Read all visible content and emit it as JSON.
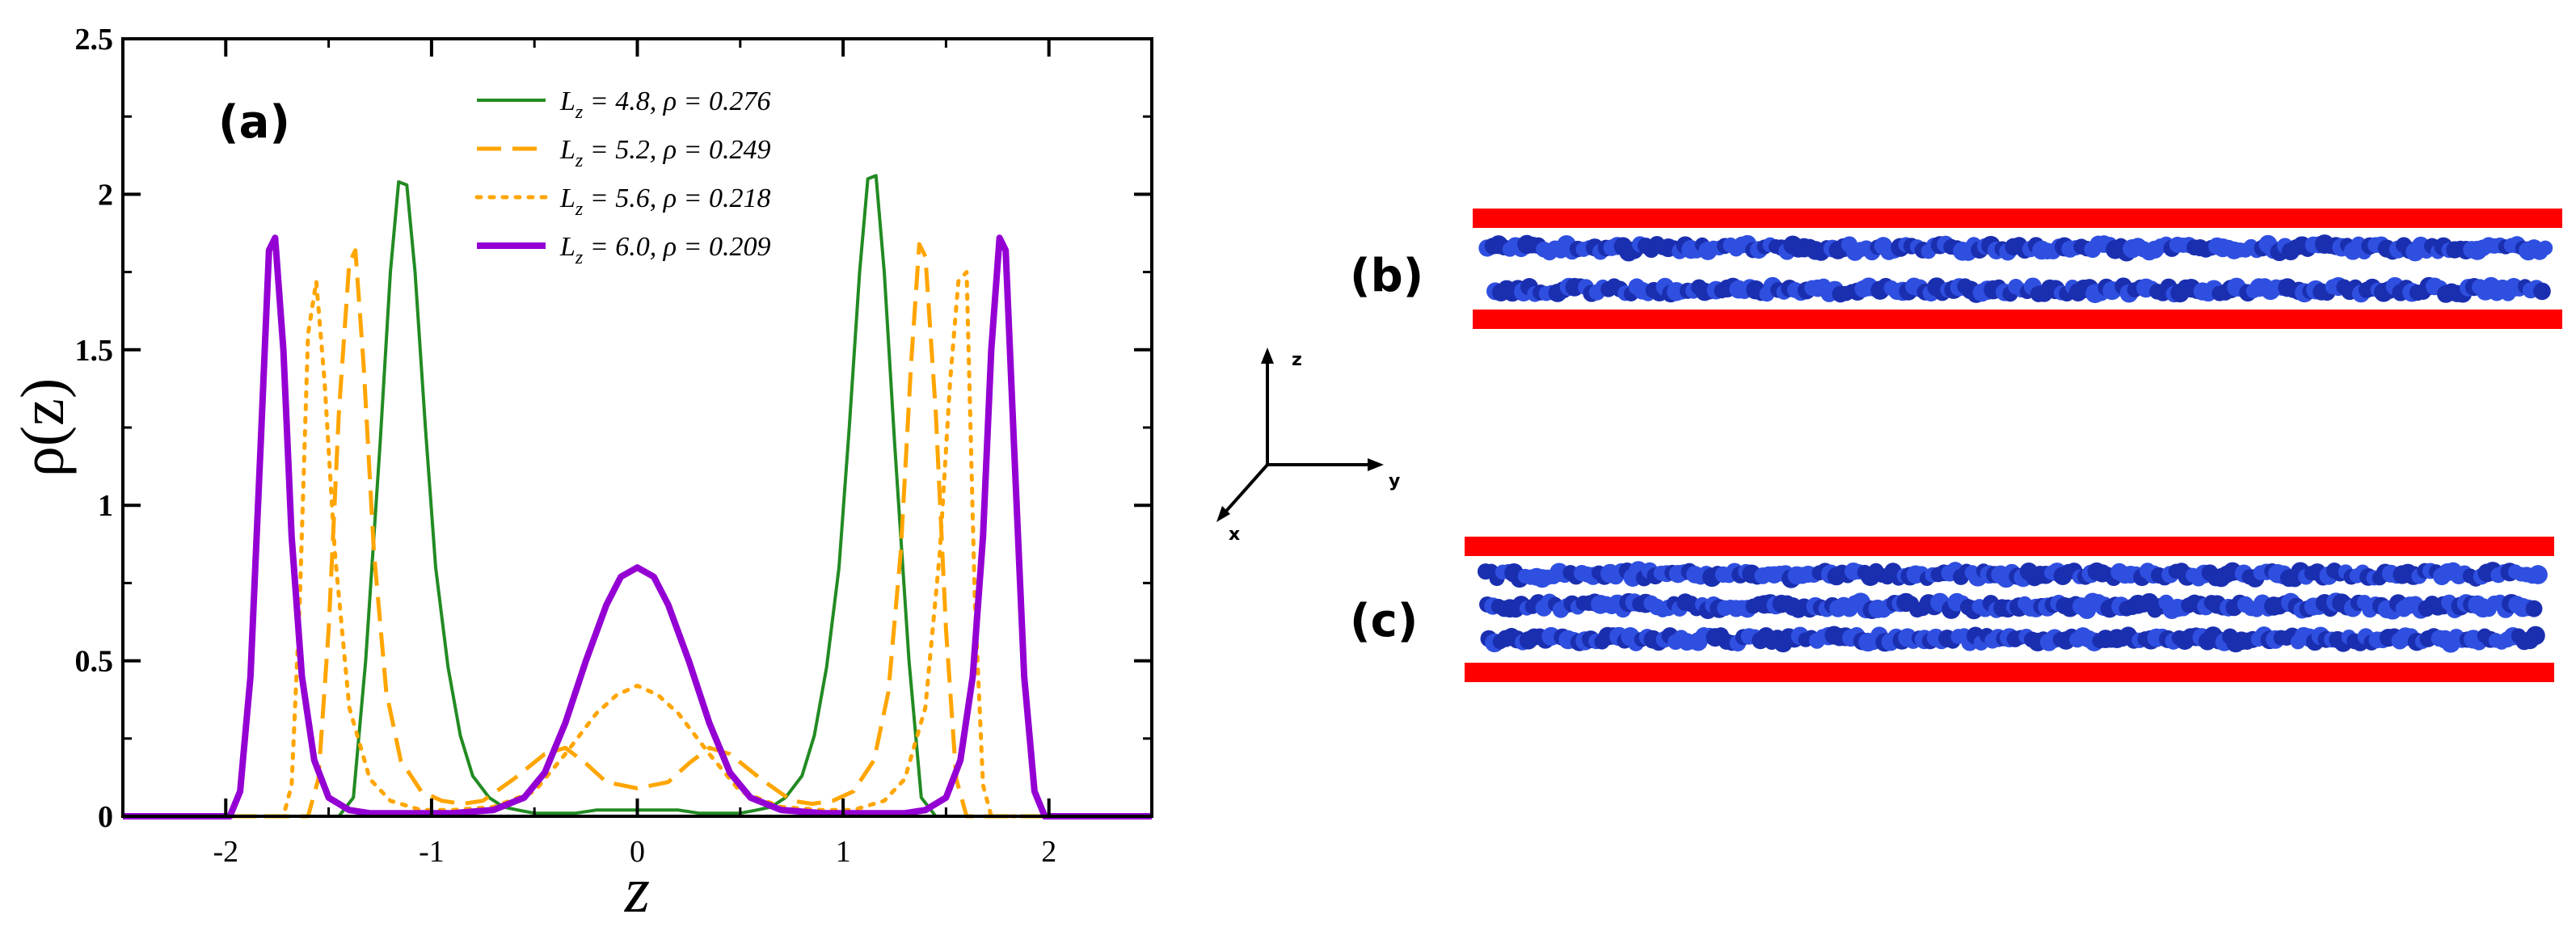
{
  "panels": {
    "a_label": "(a)",
    "b_label": "(b)",
    "c_label": "(c)"
  },
  "axes3d": {
    "z_label": "z",
    "y_label": "y",
    "x_label": "x"
  },
  "colors": {
    "green": "#228B22",
    "orange": "#FFA500",
    "purple": "#9400D3",
    "wall": "#FF0000",
    "bead": "#2f4fe0",
    "bead_dark": "#1a2fb0",
    "axis": "#000000"
  },
  "chart_data": {
    "type": "line",
    "xlabel": "z",
    "ylabel": "ρ(z)",
    "xlim": [
      -2.5,
      2.5
    ],
    "ylim": [
      0,
      2.5
    ],
    "x_ticks": [
      -2,
      -1,
      0,
      1,
      2
    ],
    "y_ticks": [
      0,
      0.5,
      1,
      1.5,
      2,
      2.5
    ],
    "x_tick_labels": [
      "-2",
      "-1",
      "0",
      "1",
      "2"
    ],
    "y_tick_labels": [
      "0",
      "0.5",
      "1",
      "1.5",
      "2",
      "2.5"
    ],
    "legend_placement": "top-center",
    "series": [
      {
        "name": "L_z = 4.8, ρ = 0.276",
        "name_parts": {
          "L": "L",
          "sub": "z",
          "rest": " = 4.8, ρ = 0.276"
        },
        "style": "solid",
        "color": "#228B22",
        "width": 4,
        "x": [
          -2.5,
          -1.45,
          -1.38,
          -1.32,
          -1.25,
          -1.2,
          -1.16,
          -1.12,
          -1.08,
          -1.03,
          -0.98,
          -0.92,
          -0.86,
          -0.8,
          -0.72,
          -0.65,
          -0.58,
          -0.5,
          -0.4,
          -0.3,
          -0.2,
          -0.1,
          0,
          0.1,
          0.2,
          0.3,
          0.4,
          0.5,
          0.58,
          0.65,
          0.72,
          0.8,
          0.86,
          0.92,
          0.98,
          1.03,
          1.08,
          1.12,
          1.16,
          1.2,
          1.25,
          1.32,
          1.38,
          1.45,
          2.5
        ],
        "y": [
          0,
          0,
          0.06,
          0.5,
          1.2,
          1.75,
          2.04,
          2.03,
          1.75,
          1.25,
          0.8,
          0.48,
          0.26,
          0.13,
          0.06,
          0.03,
          0.02,
          0.01,
          0.01,
          0.01,
          0.02,
          0.02,
          0.02,
          0.02,
          0.02,
          0.01,
          0.01,
          0.01,
          0.02,
          0.03,
          0.06,
          0.13,
          0.26,
          0.48,
          0.8,
          1.25,
          1.75,
          2.05,
          2.06,
          1.75,
          1.2,
          0.5,
          0.06,
          0,
          0
        ]
      },
      {
        "name": "L_z = 5.2, ρ = 0.249",
        "name_parts": {
          "L": "L",
          "sub": "z",
          "rest": " = 5.2, ρ = 0.249"
        },
        "style": "dashed",
        "color": "#FFA500",
        "width": 5,
        "x": [
          -2.5,
          -1.6,
          -1.55,
          -1.5,
          -1.45,
          -1.4,
          -1.37,
          -1.33,
          -1.28,
          -1.22,
          -1.15,
          -1.05,
          -0.95,
          -0.85,
          -0.75,
          -0.6,
          -0.45,
          -0.35,
          -0.25,
          -0.15,
          0,
          0.15,
          0.25,
          0.35,
          0.45,
          0.6,
          0.75,
          0.85,
          0.95,
          1.05,
          1.15,
          1.22,
          1.28,
          1.33,
          1.37,
          1.4,
          1.45,
          1.5,
          1.55,
          1.6,
          2.5
        ],
        "y": [
          0,
          0,
          0.12,
          0.6,
          1.3,
          1.78,
          1.82,
          1.45,
          0.85,
          0.4,
          0.18,
          0.08,
          0.05,
          0.04,
          0.05,
          0.12,
          0.2,
          0.22,
          0.17,
          0.11,
          0.09,
          0.11,
          0.17,
          0.22,
          0.2,
          0.12,
          0.05,
          0.04,
          0.05,
          0.08,
          0.18,
          0.4,
          0.85,
          1.45,
          1.84,
          1.8,
          1.3,
          0.6,
          0.12,
          0,
          0
        ]
      },
      {
        "name": "L_z = 5.6, ρ = 0.218",
        "name_parts": {
          "L": "L",
          "sub": "z",
          "rest": " = 5.6, ρ = 0.218"
        },
        "style": "dotted",
        "color": "#FFA500",
        "width": 5,
        "x": [
          -2.5,
          -1.72,
          -1.68,
          -1.64,
          -1.6,
          -1.56,
          -1.52,
          -1.47,
          -1.4,
          -1.3,
          -1.2,
          -1.05,
          -0.9,
          -0.7,
          -0.5,
          -0.35,
          -0.2,
          -0.1,
          0,
          0.1,
          0.2,
          0.35,
          0.5,
          0.7,
          0.9,
          1.05,
          1.2,
          1.3,
          1.4,
          1.47,
          1.52,
          1.56,
          1.6,
          1.64,
          1.68,
          1.72,
          2.5
        ],
        "y": [
          0,
          0,
          0.1,
          0.7,
          1.55,
          1.72,
          1.4,
          0.85,
          0.35,
          0.12,
          0.05,
          0.02,
          0.02,
          0.03,
          0.08,
          0.2,
          0.33,
          0.39,
          0.42,
          0.39,
          0.33,
          0.2,
          0.08,
          0.03,
          0.02,
          0.02,
          0.05,
          0.12,
          0.35,
          0.85,
          1.4,
          1.72,
          1.75,
          0.7,
          0.1,
          0,
          0
        ]
      },
      {
        "name": "L_z = 6.0, ρ = 0.209",
        "name_parts": {
          "L": "L",
          "sub": "z",
          "rest": " = 6.0, ρ = 0.209"
        },
        "style": "solid",
        "color": "#9400D3",
        "width": 8,
        "x": [
          -2.5,
          -1.98,
          -1.93,
          -1.88,
          -1.83,
          -1.79,
          -1.76,
          -1.72,
          -1.68,
          -1.63,
          -1.57,
          -1.5,
          -1.4,
          -1.3,
          -1.1,
          -0.9,
          -0.7,
          -0.55,
          -0.45,
          -0.35,
          -0.25,
          -0.15,
          -0.08,
          0,
          0.08,
          0.15,
          0.25,
          0.35,
          0.45,
          0.55,
          0.7,
          0.9,
          1.1,
          1.3,
          1.4,
          1.5,
          1.57,
          1.63,
          1.68,
          1.72,
          1.76,
          1.79,
          1.83,
          1.88,
          1.93,
          1.98,
          2.5
        ],
        "y": [
          0,
          0,
          0.08,
          0.45,
          1.2,
          1.82,
          1.86,
          1.5,
          0.9,
          0.45,
          0.18,
          0.06,
          0.02,
          0.01,
          0.01,
          0.01,
          0.02,
          0.06,
          0.14,
          0.3,
          0.5,
          0.68,
          0.77,
          0.8,
          0.77,
          0.68,
          0.5,
          0.3,
          0.14,
          0.06,
          0.02,
          0.01,
          0.01,
          0.01,
          0.02,
          0.06,
          0.18,
          0.45,
          0.9,
          1.5,
          1.86,
          1.82,
          1.2,
          0.45,
          0.08,
          0,
          0
        ]
      }
    ]
  }
}
